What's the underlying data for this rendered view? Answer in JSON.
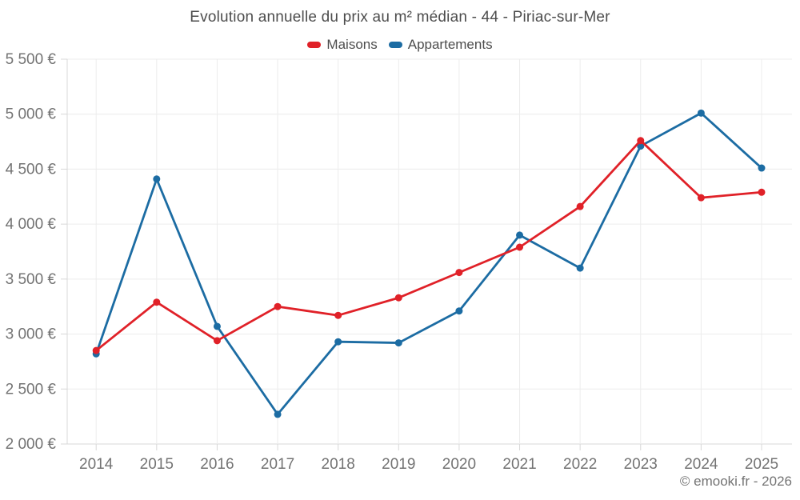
{
  "chart": {
    "title": "Evolution annuelle du prix au m² médian - 44 - Piriac-sur-Mer"
  },
  "footer": {
    "attribution": "© emooki.fr - 2026"
  },
  "colors": {
    "maisons": "#e02128",
    "appartements": "#1c6ca3",
    "gridline": "#ececec",
    "axis": "#d8d8d8",
    "axis_text": "#737373",
    "title_text": "#4d4d4d"
  },
  "chart_data": {
    "type": "line",
    "title": "Evolution annuelle du prix au m² médian - 44 - Piriac-sur-Mer",
    "categories": [
      "2014",
      "2015",
      "2016",
      "2017",
      "2018",
      "2019",
      "2020",
      "2021",
      "2022",
      "2023",
      "2024",
      "2025"
    ],
    "series": [
      {
        "name": "Maisons",
        "color": "#e02128",
        "values": [
          2850,
          3290,
          2940,
          3250,
          3170,
          3330,
          3560,
          3790,
          4160,
          4760,
          4240,
          4290
        ]
      },
      {
        "name": "Appartements",
        "color": "#1c6ca3",
        "values": [
          2820,
          4410,
          3070,
          2270,
          2930,
          2920,
          3210,
          3900,
          3600,
          4710,
          5010,
          4510
        ]
      }
    ],
    "xlabel": "",
    "ylabel": "",
    "ylim": [
      2000,
      5500
    ],
    "ytick_step": 500,
    "ytick_labels": [
      "2 000 €",
      "2 500 €",
      "3 000 €",
      "3 500 €",
      "4 000 €",
      "4 500 €",
      "5 000 €",
      "5 500 €"
    ],
    "grid": true,
    "legend_position": "top",
    "unit": "€"
  }
}
